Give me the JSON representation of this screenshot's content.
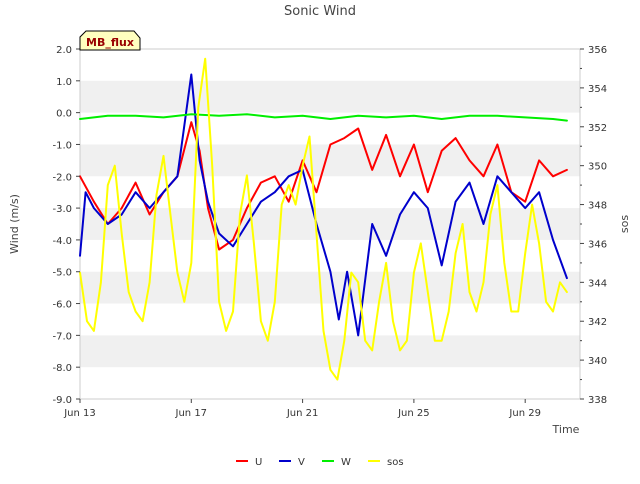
{
  "chart_data": {
    "type": "line",
    "title": "Sonic Wind",
    "site_badge": "MB_flux",
    "xlabel": "Time",
    "ylabel": "Wind (m/s)",
    "y2label": "sos",
    "x_start": "2024-06-13",
    "x_end": "2024-06-30",
    "x_ticks": [
      {
        "label": "Jun 13",
        "day": 13
      },
      {
        "label": "Jun 17",
        "day": 17
      },
      {
        "label": "Jun 21",
        "day": 21
      },
      {
        "label": "Jun 25",
        "day": 25
      },
      {
        "label": "Jun 29",
        "day": 29
      }
    ],
    "ylim": [
      -9.0,
      2.0
    ],
    "y_ticks": [
      "-9.0",
      "-8.0",
      "-7.0",
      "-6.0",
      "-5.0",
      "-4.0",
      "-3.0",
      "-2.0",
      "-1.0",
      "0.0",
      "1.0",
      "2.0"
    ],
    "y2lim": [
      338,
      356
    ],
    "y2_ticks": [
      "338",
      "340",
      "342",
      "344",
      "346",
      "348",
      "350",
      "352",
      "354",
      "356"
    ],
    "legend_position": "bottom",
    "grid": "horizontal bands",
    "series": [
      {
        "name": "U",
        "color": "#ff0000",
        "axis": "left",
        "x": [
          13.0,
          13.5,
          14.0,
          14.5,
          15.0,
          15.5,
          16.0,
          16.5,
          17.0,
          17.3,
          17.6,
          18.0,
          18.5,
          19.0,
          19.5,
          20.0,
          20.5,
          21.0,
          21.5,
          22.0,
          22.5,
          23.0,
          23.5,
          24.0,
          24.5,
          25.0,
          25.5,
          26.0,
          26.5,
          27.0,
          27.5,
          28.0,
          28.5,
          29.0,
          29.5,
          30.0,
          30.5
        ],
        "values": [
          -2.0,
          -2.8,
          -3.5,
          -3.0,
          -2.2,
          -3.2,
          -2.5,
          -2.0,
          -0.3,
          -1.2,
          -3.0,
          -4.3,
          -4.0,
          -3.0,
          -2.2,
          -2.0,
          -2.8,
          -1.5,
          -2.5,
          -1.0,
          -0.8,
          -0.5,
          -1.8,
          -0.7,
          -2.0,
          -1.0,
          -2.5,
          -1.2,
          -0.8,
          -1.5,
          -2.0,
          -1.0,
          -2.5,
          -2.8,
          -1.5,
          -2.0,
          -1.8
        ]
      },
      {
        "name": "V",
        "color": "#0000cc",
        "axis": "left",
        "x": [
          13.0,
          13.2,
          13.5,
          14.0,
          14.5,
          15.0,
          15.5,
          16.0,
          16.5,
          17.0,
          17.3,
          17.6,
          18.0,
          18.5,
          19.0,
          19.5,
          20.0,
          20.5,
          21.0,
          21.5,
          22.0,
          22.3,
          22.6,
          23.0,
          23.5,
          24.0,
          24.5,
          25.0,
          25.5,
          26.0,
          26.5,
          27.0,
          27.5,
          28.0,
          28.5,
          29.0,
          29.5,
          30.0,
          30.5
        ],
        "values": [
          -4.5,
          -2.5,
          -3.0,
          -3.5,
          -3.2,
          -2.5,
          -3.0,
          -2.5,
          -2.0,
          1.2,
          -1.5,
          -2.8,
          -3.8,
          -4.2,
          -3.5,
          -2.8,
          -2.5,
          -2.0,
          -1.8,
          -3.5,
          -5.0,
          -6.5,
          -5.0,
          -7.0,
          -3.5,
          -4.5,
          -3.2,
          -2.5,
          -3.0,
          -4.8,
          -2.8,
          -2.2,
          -3.5,
          -2.0,
          -2.5,
          -3.0,
          -2.5,
          -4.0,
          -5.2
        ]
      },
      {
        "name": "W",
        "color": "#00ee00",
        "axis": "left",
        "x": [
          13.0,
          14.0,
          15.0,
          16.0,
          17.0,
          18.0,
          19.0,
          20.0,
          21.0,
          22.0,
          23.0,
          24.0,
          25.0,
          26.0,
          27.0,
          28.0,
          29.0,
          30.0,
          30.5
        ],
        "values": [
          -0.2,
          -0.1,
          -0.1,
          -0.15,
          -0.05,
          -0.1,
          -0.05,
          -0.15,
          -0.1,
          -0.2,
          -0.1,
          -0.15,
          -0.1,
          -0.2,
          -0.1,
          -0.1,
          -0.15,
          -0.2,
          -0.25
        ]
      },
      {
        "name": "sos",
        "color": "#ffff00",
        "axis": "right",
        "x": [
          13.0,
          13.25,
          13.5,
          13.75,
          14.0,
          14.25,
          14.5,
          14.75,
          15.0,
          15.25,
          15.5,
          15.75,
          16.0,
          16.25,
          16.5,
          16.75,
          17.0,
          17.25,
          17.5,
          17.75,
          18.0,
          18.25,
          18.5,
          18.75,
          19.0,
          19.25,
          19.5,
          19.75,
          20.0,
          20.25,
          20.5,
          20.75,
          21.0,
          21.25,
          21.5,
          21.75,
          22.0,
          22.25,
          22.5,
          22.75,
          23.0,
          23.25,
          23.5,
          23.75,
          24.0,
          24.25,
          24.5,
          24.75,
          25.0,
          25.25,
          25.5,
          25.75,
          26.0,
          26.25,
          26.5,
          26.75,
          27.0,
          27.25,
          27.5,
          27.75,
          28.0,
          28.25,
          28.5,
          28.75,
          29.0,
          29.25,
          29.5,
          29.75,
          30.0,
          30.25,
          30.5
        ],
        "values": [
          344.5,
          342.0,
          341.5,
          344.0,
          349.0,
          350.0,
          346.5,
          343.5,
          342.5,
          342.0,
          344.0,
          348.5,
          350.5,
          347.5,
          344.5,
          343.0,
          345.0,
          353.0,
          355.5,
          350.0,
          343.0,
          341.5,
          342.5,
          347.5,
          349.5,
          346.0,
          342.0,
          341.0,
          343.0,
          348.0,
          349.0,
          348.0,
          350.0,
          351.5,
          346.5,
          341.5,
          339.5,
          339.0,
          341.0,
          344.5,
          344.0,
          341.0,
          340.5,
          343.0,
          345.0,
          342.0,
          340.5,
          341.0,
          344.5,
          346.0,
          343.5,
          341.0,
          341.0,
          342.5,
          345.5,
          347.0,
          343.5,
          342.5,
          344.0,
          347.5,
          349.0,
          345.0,
          342.5,
          342.5,
          345.5,
          348.0,
          346.0,
          343.0,
          342.5,
          344.0,
          343.5
        ]
      }
    ]
  }
}
